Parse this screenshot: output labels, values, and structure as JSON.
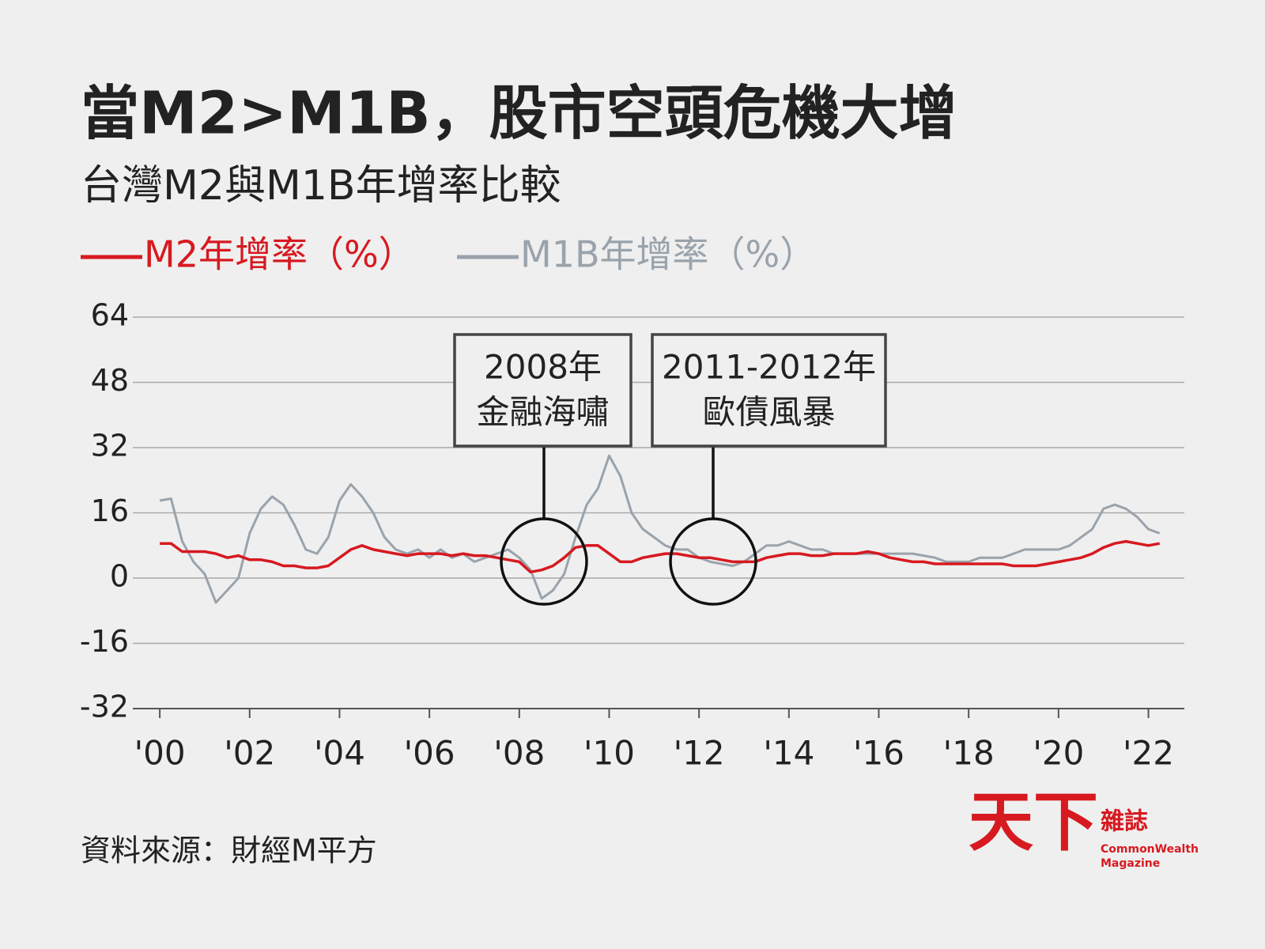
{
  "chart_data": {
    "type": "line",
    "title": "當M2>M1B，股市空頭危機大增",
    "subtitle": "台灣M2與M1B年增率比較",
    "source": "資料來源：財經M平方",
    "logo": {
      "main": "天下",
      "side": "雜誌",
      "english": [
        "CommonWealth",
        "Magazine"
      ]
    },
    "annotations": [
      {
        "lines": [
          "2008年",
          "金融海嘯"
        ]
      },
      {
        "lines": [
          "2011-2012年",
          "歐債風暴"
        ]
      }
    ],
    "x": [
      2000,
      2000.25,
      2000.5,
      2000.75,
      2001,
      2001.25,
      2001.5,
      2001.75,
      2002,
      2002.25,
      2002.5,
      2002.75,
      2003,
      2003.25,
      2003.5,
      2003.75,
      2004,
      2004.25,
      2004.5,
      2004.75,
      2005,
      2005.25,
      2005.5,
      2005.75,
      2006,
      2006.25,
      2006.5,
      2006.75,
      2007,
      2007.25,
      2007.5,
      2007.75,
      2008,
      2008.25,
      2008.5,
      2008.75,
      2009,
      2009.25,
      2009.5,
      2009.75,
      2010,
      2010.25,
      2010.5,
      2010.75,
      2011,
      2011.25,
      2011.5,
      2011.75,
      2012,
      2012.25,
      2012.5,
      2012.75,
      2013,
      2013.25,
      2013.5,
      2013.75,
      2014,
      2014.25,
      2014.5,
      2014.75,
      2015,
      2015.25,
      2015.5,
      2015.75,
      2016,
      2016.25,
      2016.5,
      2016.75,
      2017,
      2017.25,
      2017.5,
      2017.75,
      2018,
      2018.25,
      2018.5,
      2018.75,
      2019,
      2019.25,
      2019.5,
      2019.75,
      2020,
      2020.25,
      2020.5,
      2020.75,
      2021,
      2021.25,
      2021.5,
      2021.75,
      2022,
      2022.25
    ],
    "series": [
      {
        "name": "M2年增率（%）",
        "color": "#d71920",
        "values": [
          8.5,
          8.5,
          6.5,
          6.5,
          6.5,
          6,
          5,
          5.5,
          4.5,
          4.5,
          4,
          3,
          3,
          2.5,
          2.5,
          3,
          5,
          7,
          8,
          7,
          6.5,
          6,
          5.5,
          6,
          6,
          6,
          5.5,
          6,
          5.5,
          5.5,
          5,
          4.5,
          4,
          1.5,
          2,
          3,
          5,
          7.5,
          8,
          8,
          6,
          4,
          4,
          5,
          5.5,
          6,
          6,
          5.5,
          5,
          5,
          4.5,
          4,
          4,
          4,
          5,
          5.5,
          6,
          6,
          5.5,
          5.5,
          6,
          6,
          6,
          6.5,
          6,
          5,
          4.5,
          4,
          4,
          3.5,
          3.5,
          3.5,
          3.5,
          3.5,
          3.5,
          3.5,
          3,
          3,
          3,
          3.5,
          4,
          4.5,
          5,
          6,
          7.5,
          8.5,
          9,
          8.5,
          8,
          8.5
        ]
      },
      {
        "name": "M1B年增率（%）",
        "color": "#9aa3ab",
        "values": [
          19,
          19.5,
          9,
          4,
          1,
          -6,
          -3,
          0,
          11,
          17,
          20,
          18,
          13,
          7,
          6,
          10,
          19,
          23,
          20,
          16,
          10,
          7,
          6,
          7,
          5,
          7,
          5,
          6,
          4,
          5,
          6,
          7,
          5,
          2,
          -5,
          -3,
          1,
          10,
          18,
          22,
          30,
          25,
          16,
          12,
          10,
          8,
          7,
          7,
          5,
          4,
          3.5,
          3,
          4,
          6,
          8,
          8,
          9,
          8,
          7,
          7,
          6,
          6,
          6,
          6,
          6,
          6,
          6,
          6,
          5.5,
          5,
          4,
          4,
          4,
          5,
          5,
          5,
          6,
          7,
          7,
          7,
          7,
          8,
          10,
          12,
          17,
          18,
          17,
          15,
          12,
          11
        ]
      }
    ],
    "xlim": [
      1999.4,
      2022.8
    ],
    "xticks": [
      {
        "value": 2000,
        "label": "'00"
      },
      {
        "value": 2002,
        "label": "'02"
      },
      {
        "value": 2004,
        "label": "'04"
      },
      {
        "value": 2006,
        "label": "'06"
      },
      {
        "value": 2008,
        "label": "'08"
      },
      {
        "value": 2010,
        "label": "'10"
      },
      {
        "value": 2012,
        "label": "'12"
      },
      {
        "value": 2014,
        "label": "'14"
      },
      {
        "value": 2016,
        "label": "'16"
      },
      {
        "value": 2018,
        "label": "'18"
      },
      {
        "value": 2020,
        "label": "'20"
      },
      {
        "value": 2022,
        "label": "'22"
      }
    ],
    "ylim": [
      -32,
      64
    ],
    "yticks": [
      -32,
      -16,
      0,
      16,
      32,
      48,
      64
    ],
    "grid": true
  }
}
